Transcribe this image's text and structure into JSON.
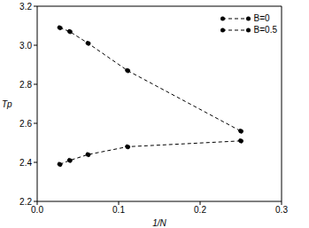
{
  "chart_data": {
    "type": "line",
    "x_label": "1/N",
    "y_label": "Tp",
    "xlim": [
      0.0,
      0.3
    ],
    "xticks": [
      {
        "value": 0,
        "label": "0.0"
      },
      {
        "value": 0.1,
        "label": "0.1"
      },
      {
        "value": 0.2,
        "label": "0.2"
      },
      {
        "value": 0.3,
        "label": "0.3"
      }
    ],
    "ylim": [
      2.2,
      3.2
    ],
    "yticks": [
      2.2,
      2.4,
      2.6,
      2.8,
      {
        "value": 3.0,
        "label": "3.0"
      },
      3.2
    ],
    "legend": "upper right",
    "grid": false,
    "series": [
      {
        "name": "B=0",
        "color": "#000000",
        "marker": "circle",
        "line_style": "dashed",
        "x": [
          0.0278,
          0.04,
          0.0625,
          0.111,
          0.25
        ],
        "values": [
          3.09,
          3.07,
          3.01,
          2.87,
          2.56
        ]
      },
      {
        "name": "B=0.5",
        "color": "#000000",
        "marker": "circle",
        "line_style": "dashed",
        "x": [
          0.0278,
          0.04,
          0.0625,
          0.111,
          0.25
        ],
        "values": [
          2.39,
          2.41,
          2.44,
          2.48,
          2.51
        ]
      }
    ]
  }
}
